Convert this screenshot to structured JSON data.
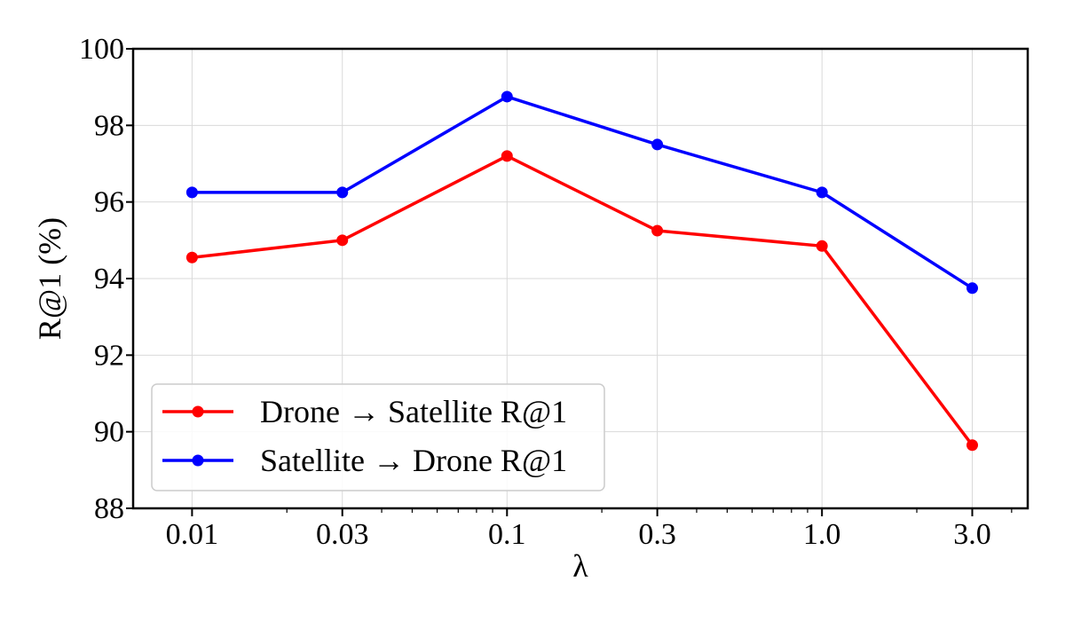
{
  "chart_data": {
    "type": "line",
    "x": [
      "0.01",
      "0.03",
      "0.1",
      "0.3",
      "1.0",
      "3.0"
    ],
    "xscale": "log",
    "xlabel": "λ",
    "ylabel": "R@1 (%)",
    "ylim": [
      88,
      100
    ],
    "yticks": [
      "88",
      "90",
      "92",
      "94",
      "96",
      "98",
      "100"
    ],
    "grid": true,
    "legend_position": "lower-left",
    "series": [
      {
        "name": "Drone → Satellite R@1",
        "color": "#ff0000",
        "values": [
          94.55,
          95.0,
          97.2,
          95.25,
          94.85,
          89.65
        ]
      },
      {
        "name": "Satellite → Drone R@1",
        "color": "#0000ff",
        "values": [
          96.25,
          96.25,
          98.75,
          97.5,
          96.25,
          93.75
        ]
      }
    ]
  }
}
